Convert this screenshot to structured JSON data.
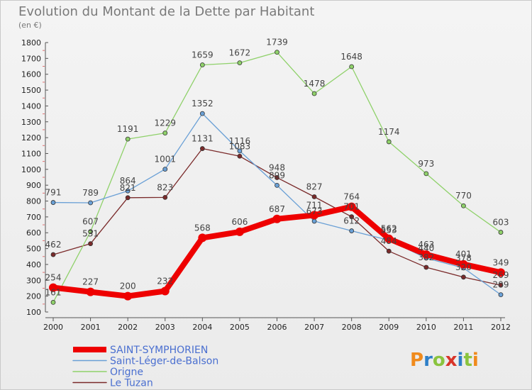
{
  "chart_data": {
    "type": "line",
    "title": "Evolution du Montant de la Dette par Habitant",
    "subtitle": "(en €)",
    "categories": [
      "2000",
      "2001",
      "2002",
      "2003",
      "2004",
      "2005",
      "2006",
      "2007",
      "2008",
      "2009",
      "2010",
      "2011",
      "2012"
    ],
    "ylim": [
      100,
      1800
    ],
    "yticks": [
      100,
      200,
      300,
      400,
      500,
      600,
      700,
      800,
      900,
      1000,
      1100,
      1200,
      1300,
      1400,
      1500,
      1600,
      1700,
      1800
    ],
    "grid": false,
    "legend_position": "bottom-left",
    "series": [
      {
        "name": "SAINT-SYMPHORIEN",
        "color": "#ee0000",
        "values": [
          254,
          227,
          200,
          232,
          568,
          606,
          687,
          711,
          764,
          562,
          463,
          401,
          349
        ],
        "labels": [
          "254",
          "227",
          "200",
          "232",
          "568",
          "606",
          "687",
          "711",
          "764",
          "562",
          "463",
          "401",
          "349"
        ]
      },
      {
        "name": "Saint-Léger-de-Balson",
        "color": "#6aa0d6",
        "values": [
          791,
          789,
          864,
          1001,
          1352,
          1116,
          899,
          673,
          612,
          553,
          440,
          378,
          209
        ],
        "labels": [
          "791",
          "789",
          "864",
          "1001",
          "1352",
          "1116",
          "899",
          "673",
          "612",
          "553",
          "440",
          "378",
          "209"
        ]
      },
      {
        "name": "Origne",
        "color": "#8fd16a",
        "values": [
          161,
          607,
          1191,
          1229,
          1659,
          1672,
          1739,
          1478,
          1648,
          1174,
          973,
          770,
          603
        ],
        "labels": [
          "161",
          "607",
          "1191",
          "1229",
          "1659",
          "1672",
          "1739",
          "1478",
          "1648",
          "1174",
          "973",
          "770",
          "603"
        ]
      },
      {
        "name": "Le Tuzan",
        "color": "#7a2a2a",
        "values": [
          462,
          531,
          821,
          823,
          1131,
          1083,
          948,
          827,
          701,
          484,
          382,
          320,
          269
        ],
        "labels": [
          "462",
          "531",
          "821",
          "823",
          "1131",
          "1083",
          "948",
          "827",
          "701",
          "484",
          "382",
          "320",
          "269"
        ]
      }
    ]
  },
  "colors": {
    "legend_text": "#4a6fd0",
    "axis": "#555555",
    "tick_mark": "#e07070"
  },
  "brand": {
    "logo_text": "Proxiti"
  }
}
